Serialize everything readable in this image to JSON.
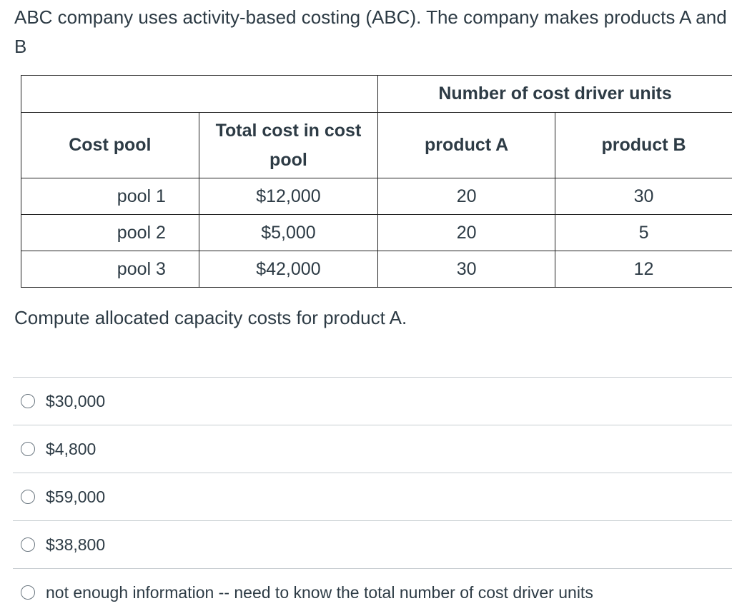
{
  "question": {
    "intro": "ABC company uses activity-based costing (ABC). The company makes products A and B",
    "prompt": "Compute allocated capacity costs for product A."
  },
  "table": {
    "group_header": "Number of cost driver units",
    "headers": {
      "cost_pool": "Cost pool",
      "total_cost": "Total cost in cost pool",
      "product_a": "product A",
      "product_b": "product B"
    },
    "rows": [
      {
        "pool": "pool 1",
        "total": "$12,000",
        "a": "20",
        "b": "30"
      },
      {
        "pool": "pool 2",
        "total": "$5,000",
        "a": "20",
        "b": "5"
      },
      {
        "pool": "pool 3",
        "total": "$42,000",
        "a": "30",
        "b": "12"
      }
    ]
  },
  "answers": [
    {
      "label": "$30,000"
    },
    {
      "label": "$4,800"
    },
    {
      "label": "$59,000"
    },
    {
      "label": "$38,800"
    },
    {
      "label": "not enough information -- need to know the total number of cost driver units"
    }
  ]
}
